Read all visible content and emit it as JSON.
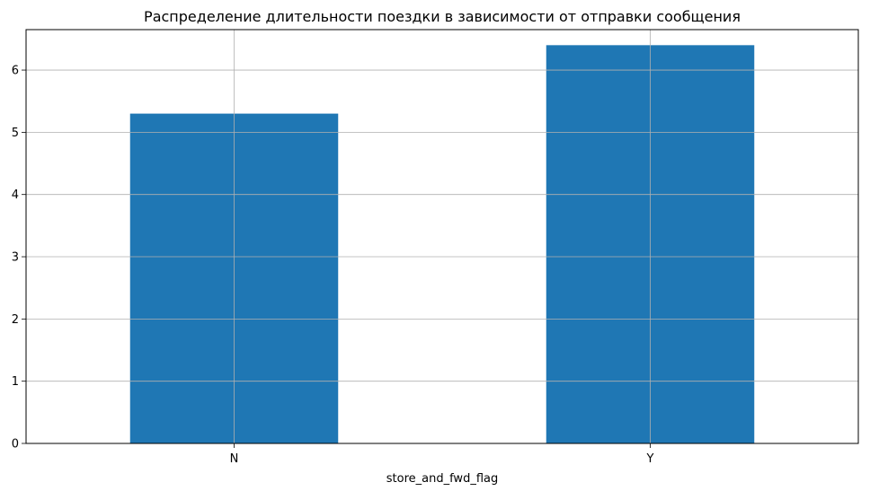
{
  "chart_data": {
    "type": "bar",
    "title": "Распределение длительности поездки в зависимости от отправки сообщения",
    "xlabel": "store_and_fwd_flag",
    "ylabel": "",
    "categories": [
      "N",
      "Y"
    ],
    "values": [
      5.3,
      6.4
    ],
    "ylim": [
      0,
      6.65
    ],
    "yticks": [
      0,
      1,
      2,
      3,
      4,
      5,
      6
    ],
    "grid": true,
    "legend": "none",
    "bar_color": "#1f77b4",
    "grid_color": "#b0b0b0"
  }
}
